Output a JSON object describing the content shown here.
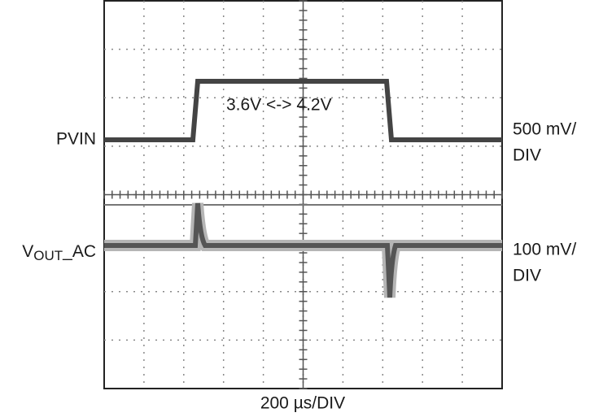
{
  "traces": {
    "pvin_label": "PVIN",
    "pvin_scale": [
      "500 mV/",
      "DIV"
    ],
    "pvin_annotation": "3.6V <-> 4.2V",
    "vout_label": {
      "main": "V",
      "subscript": "OUT",
      "suffix": "_AC"
    },
    "vout_scale": [
      "100 mV/",
      "DIV"
    ]
  },
  "time_scale": "200 µs/DIV"
}
